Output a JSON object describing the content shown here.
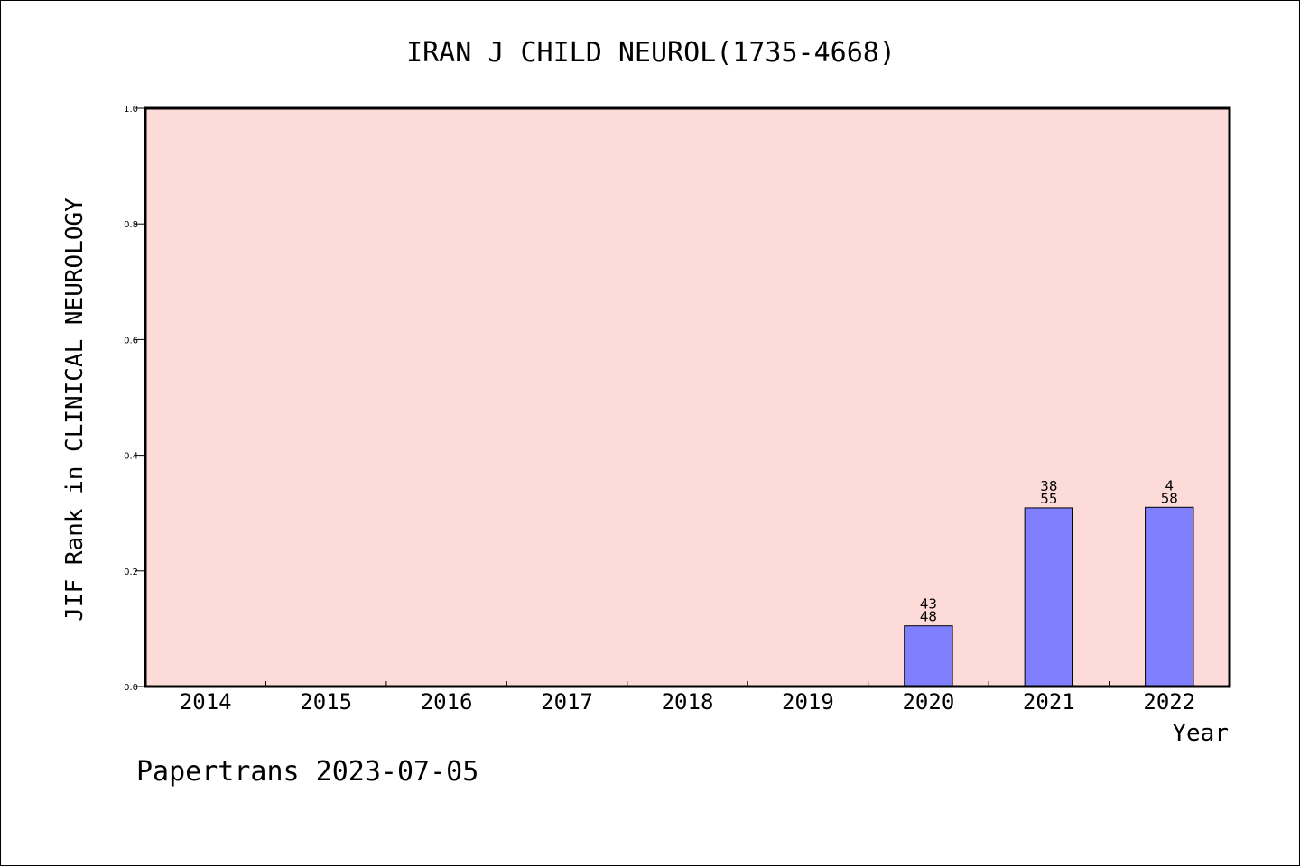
{
  "chart_data": {
    "type": "bar",
    "title": "IRAN J CHILD NEUROL(1735-4668)",
    "xlabel": "Year",
    "ylabel": "JIF Rank in CLINICAL NEUROLOGY",
    "categories": [
      "2014",
      "2015",
      "2016",
      "2017",
      "2018",
      "2019",
      "2020",
      "2021",
      "2022"
    ],
    "values": [
      null,
      null,
      null,
      null,
      null,
      null,
      0.105,
      0.309,
      0.31
    ],
    "bar_labels": [
      null,
      null,
      null,
      null,
      null,
      null,
      {
        "top": "43",
        "bottom": "48"
      },
      {
        "top": "38",
        "bottom": "55"
      },
      {
        "top": "4",
        "bottom": "58"
      }
    ],
    "ylim": [
      0,
      1.0
    ],
    "yticks": [
      "0.0",
      "0.2",
      "0.4",
      "0.6",
      "0.8",
      "1.0"
    ],
    "grid": false,
    "colors": {
      "plot_background": "#fddbd8",
      "bar_fill": "#8080ff",
      "bar_stroke": "#000000",
      "axis": "#000000"
    }
  },
  "footer": "Papertrans 2023-07-05"
}
